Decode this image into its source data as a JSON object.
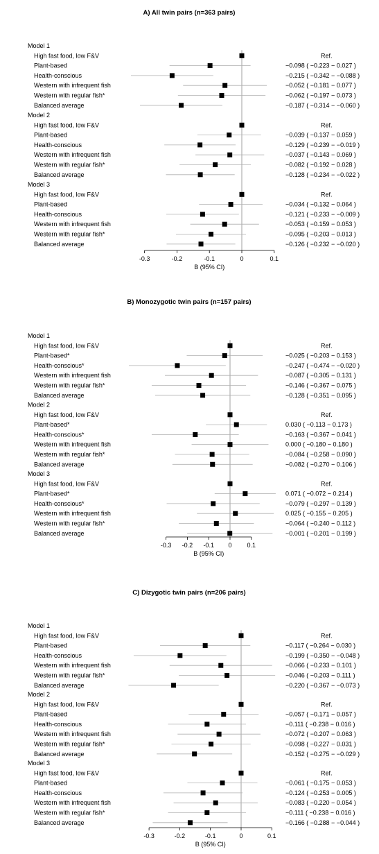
{
  "chart_data": [
    {
      "type": "forest",
      "title": "A) All twin pairs (n=363 pairs)",
      "xlabel": "B (95% CI)",
      "xlim": [
        -0.3,
        0.1
      ],
      "ticks": [
        "-0.3",
        "-0.2",
        "-0.1",
        "0",
        "0.1"
      ],
      "tick_values": [
        -0.3,
        -0.2,
        -0.1,
        0,
        0.1
      ],
      "models": [
        {
          "name": "Model 1",
          "rows": [
            {
              "label": "High fast food, low F&V",
              "est": 0,
              "lo": null,
              "hi": null,
              "text": "Ref."
            },
            {
              "label": "Plant-based",
              "est": -0.098,
              "lo": -0.223,
              "hi": 0.027,
              "text": "−0.098  ( −0.223 −  0.027 )"
            },
            {
              "label": "Health-conscious",
              "est": -0.215,
              "lo": -0.342,
              "hi": -0.088,
              "text": "−0.215  ( −0.342 − −0.088 )"
            },
            {
              "label": "Western with infrequent fish",
              "est": -0.052,
              "lo": -0.181,
              "hi": 0.077,
              "text": "−0.052  ( −0.181 −  0.077 )"
            },
            {
              "label": "Western with regular fish*",
              "est": -0.062,
              "lo": -0.197,
              "hi": 0.073,
              "text": "−0.062  ( −0.197 −  0.073 )"
            },
            {
              "label": "Balanced average",
              "est": -0.187,
              "lo": -0.314,
              "hi": -0.06,
              "text": "−0.187  ( −0.314 − −0.060 )"
            }
          ]
        },
        {
          "name": "Model 2",
          "rows": [
            {
              "label": "High fast food, low F&V",
              "est": 0,
              "lo": null,
              "hi": null,
              "text": "Ref."
            },
            {
              "label": "Plant-based",
              "est": -0.039,
              "lo": -0.137,
              "hi": 0.059,
              "text": "−0.039  ( −0.137 −  0.059 )"
            },
            {
              "label": "Health-conscious",
              "est": -0.129,
              "lo": -0.239,
              "hi": -0.019,
              "text": "−0.129  ( −0.239 − −0.019 )"
            },
            {
              "label": "Western with infrequent fish",
              "est": -0.037,
              "lo": -0.143,
              "hi": 0.069,
              "text": "−0.037  ( −0.143 −  0.069 )"
            },
            {
              "label": "Western with regular fish*",
              "est": -0.082,
              "lo": -0.192,
              "hi": 0.028,
              "text": "−0.082  ( −0.192 −  0.028 )"
            },
            {
              "label": "Balanced average",
              "est": -0.128,
              "lo": -0.234,
              "hi": -0.022,
              "text": "−0.128  ( −0.234 − −0.022 )"
            }
          ]
        },
        {
          "name": "Model 3",
          "rows": [
            {
              "label": "High fast food, low F&V",
              "est": 0,
              "lo": null,
              "hi": null,
              "text": "Ref."
            },
            {
              "label": "Plant-based",
              "est": -0.034,
              "lo": -0.132,
              "hi": 0.064,
              "text": "−0.034  ( −0.132 −  0.064 )"
            },
            {
              "label": "Health-conscious",
              "est": -0.121,
              "lo": -0.233,
              "hi": -0.009,
              "text": "−0.121  ( −0.233 − −0.009 )"
            },
            {
              "label": "Western with infrequent fish",
              "est": -0.053,
              "lo": -0.159,
              "hi": 0.053,
              "text": "−0.053  ( −0.159 −  0.053 )"
            },
            {
              "label": "Western with regular fish*",
              "est": -0.095,
              "lo": -0.203,
              "hi": 0.013,
              "text": "−0.095  ( −0.203 −  0.013 )"
            },
            {
              "label": "Balanced average",
              "est": -0.126,
              "lo": -0.232,
              "hi": -0.02,
              "text": "−0.126  ( −0.232 − −0.020 )"
            }
          ]
        }
      ]
    },
    {
      "type": "forest",
      "title": "B) Monozygotic twin pairs (n=157 pairs)",
      "xlabel": "B (95% CI)",
      "xlim": [
        -0.3,
        0.1
      ],
      "ticks": [
        "-0.3",
        "-0.2",
        "-0.1",
        "0",
        "0.1"
      ],
      "tick_values": [
        -0.3,
        -0.2,
        -0.1,
        0,
        0.1
      ],
      "models": [
        {
          "name": "Model 1",
          "rows": [
            {
              "label": "High fast food, low F&V",
              "est": 0,
              "lo": null,
              "hi": null,
              "text": "Ref."
            },
            {
              "label": "Plant-based*",
              "est": -0.025,
              "lo": -0.203,
              "hi": 0.153,
              "text": "−0.025  ( −0.203 −  0.153 )"
            },
            {
              "label": "Health-conscious*",
              "est": -0.247,
              "lo": -0.474,
              "hi": -0.02,
              "text": "−0.247  ( −0.474 − −0.020 )"
            },
            {
              "label": "Western with infrequent fish",
              "est": -0.087,
              "lo": -0.305,
              "hi": 0.131,
              "text": "−0.087  ( −0.305 −  0.131 )"
            },
            {
              "label": "Western with regular fish*",
              "est": -0.146,
              "lo": -0.367,
              "hi": 0.075,
              "text": "−0.146  ( −0.367 −  0.075 )"
            },
            {
              "label": "Balanced average",
              "est": -0.128,
              "lo": -0.351,
              "hi": 0.095,
              "text": "−0.128  ( −0.351 −  0.095 )"
            }
          ]
        },
        {
          "name": "Model 2",
          "rows": [
            {
              "label": "High fast food, low F&V",
              "est": 0,
              "lo": null,
              "hi": null,
              "text": "Ref."
            },
            {
              "label": "Plant-based*",
              "est": 0.03,
              "lo": -0.113,
              "hi": 0.173,
              "text": "0.030  ( −0.113 −  0.173 )"
            },
            {
              "label": "Health-conscious*",
              "est": -0.163,
              "lo": -0.367,
              "hi": 0.041,
              "text": "−0.163  ( −0.367 −  0.041 )"
            },
            {
              "label": "Western with infrequent fish",
              "est": 0.0,
              "lo": -0.18,
              "hi": 0.18,
              "text": "0.000  ( −0.180 −  0.180 )"
            },
            {
              "label": "Western with regular fish*",
              "est": -0.084,
              "lo": -0.258,
              "hi": 0.09,
              "text": "−0.084  ( −0.258 −  0.090 )"
            },
            {
              "label": "Balanced average",
              "est": -0.082,
              "lo": -0.27,
              "hi": 0.106,
              "text": "−0.082  ( −0.270 −  0.106 )"
            }
          ]
        },
        {
          "name": "Model 3",
          "rows": [
            {
              "label": "High fast food, low F&V",
              "est": 0,
              "lo": null,
              "hi": null,
              "text": "Ref."
            },
            {
              "label": "Plant-based*",
              "est": 0.071,
              "lo": -0.072,
              "hi": 0.214,
              "text": "0.071  ( −0.072 −  0.214 )"
            },
            {
              "label": "Health-conscious*",
              "est": -0.079,
              "lo": -0.297,
              "hi": 0.139,
              "text": "−0.079  ( −0.297 −  0.139 )"
            },
            {
              "label": "Western with infrequent fish",
              "est": 0.025,
              "lo": -0.155,
              "hi": 0.205,
              "text": "0.025  ( −0.155 −  0.205 )"
            },
            {
              "label": "Western with regular fish*",
              "est": -0.064,
              "lo": -0.24,
              "hi": 0.112,
              "text": "−0.064  ( −0.240 −  0.112 )"
            },
            {
              "label": "Balanced average",
              "est": -0.001,
              "lo": -0.201,
              "hi": 0.199,
              "text": "−0.001  ( −0.201 −  0.199 )"
            }
          ]
        }
      ]
    },
    {
      "type": "forest",
      "title": "C) Dizygotic twin pairs (n=206 pairs)",
      "xlabel": "B (95% CI)",
      "xlim": [
        -0.3,
        0.1
      ],
      "ticks": [
        "-0.3",
        "-0.2",
        "-0.1",
        "0",
        "0.1"
      ],
      "tick_values": [
        -0.3,
        -0.2,
        -0.1,
        0,
        0.1
      ],
      "models": [
        {
          "name": "Model 1",
          "rows": [
            {
              "label": "High fast food, low F&V",
              "est": 0,
              "lo": null,
              "hi": null,
              "text": "Ref."
            },
            {
              "label": "Plant-based",
              "est": -0.117,
              "lo": -0.264,
              "hi": 0.03,
              "text": "−0.117  ( −0.264 −  0.030 )"
            },
            {
              "label": "Health-conscious",
              "est": -0.199,
              "lo": -0.35,
              "hi": -0.048,
              "text": "−0.199  ( −0.350 − −0.048 )"
            },
            {
              "label": "Western with infrequent fish",
              "est": -0.066,
              "lo": -0.233,
              "hi": 0.101,
              "text": "−0.066  ( −0.233 −  0.101 )"
            },
            {
              "label": "Western with regular fish*",
              "est": -0.046,
              "lo": -0.203,
              "hi": 0.111,
              "text": "−0.046  ( −0.203 −  0.111 )"
            },
            {
              "label": "Balanced average",
              "est": -0.22,
              "lo": -0.367,
              "hi": -0.073,
              "text": "−0.220  ( −0.367 − −0.073 )"
            }
          ]
        },
        {
          "name": "Model 2",
          "rows": [
            {
              "label": "High fast food, low F&V",
              "est": 0,
              "lo": null,
              "hi": null,
              "text": "Ref."
            },
            {
              "label": "Plant-based",
              "est": -0.057,
              "lo": -0.171,
              "hi": 0.057,
              "text": "−0.057  ( −0.171 −  0.057 )"
            },
            {
              "label": "Health-conscious",
              "est": -0.111,
              "lo": -0.238,
              "hi": 0.016,
              "text": "−0.111  ( −0.238 −  0.016 )"
            },
            {
              "label": "Western with infrequent fish",
              "est": -0.072,
              "lo": -0.207,
              "hi": 0.063,
              "text": "−0.072  ( −0.207 −  0.063 )"
            },
            {
              "label": "Western with regular fish*",
              "est": -0.098,
              "lo": -0.227,
              "hi": 0.031,
              "text": "−0.098  ( −0.227 −  0.031 )"
            },
            {
              "label": "Balanced average",
              "est": -0.152,
              "lo": -0.275,
              "hi": -0.029,
              "text": "−0.152  ( −0.275 − −0.029 )"
            }
          ]
        },
        {
          "name": "Model 3",
          "rows": [
            {
              "label": "High fast food, low F&V",
              "est": 0,
              "lo": null,
              "hi": null,
              "text": "Ref."
            },
            {
              "label": "Plant-based",
              "est": -0.061,
              "lo": -0.175,
              "hi": 0.053,
              "text": "−0.061  ( −0.175 −  0.053 )"
            },
            {
              "label": "Health-conscious",
              "est": -0.124,
              "lo": -0.253,
              "hi": 0.005,
              "text": "−0.124  ( −0.253 −  0.005 )"
            },
            {
              "label": "Western with infrequent fish",
              "est": -0.083,
              "lo": -0.22,
              "hi": 0.054,
              "text": "−0.083  ( −0.220 −  0.054 )"
            },
            {
              "label": "Western with regular fish*",
              "est": -0.111,
              "lo": -0.238,
              "hi": 0.016,
              "text": "−0.111  ( −0.238 −  0.016 )"
            },
            {
              "label": "Balanced average",
              "est": -0.166,
              "lo": -0.288,
              "hi": -0.044,
              "text": "−0.166  ( −0.288 − −0.044 )"
            }
          ]
        }
      ]
    }
  ]
}
